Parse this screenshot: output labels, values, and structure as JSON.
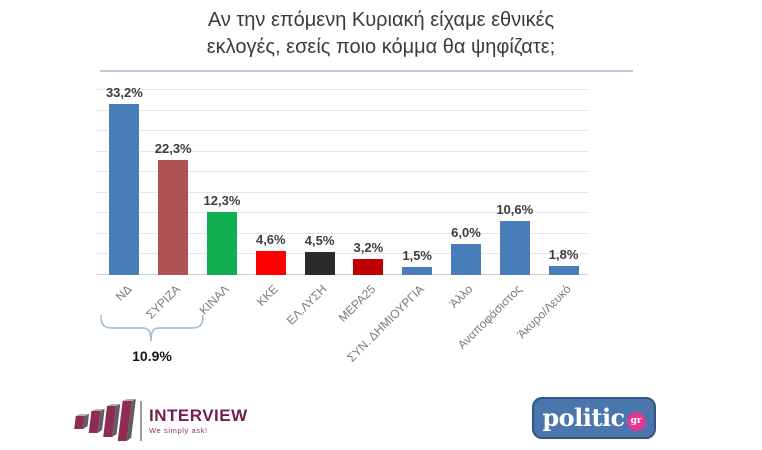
{
  "title": {
    "line1": "Αν την επόμενη Κυριακή είχαμε εθνικές",
    "line2": "εκλογές, εσείς ποιο κόμμα θα ψηφίζατε;"
  },
  "chart_data": {
    "type": "bar",
    "title": "Αν την επόμενη Κυριακή είχαμε εθνικές εκλογές, εσείς ποιο κόμμα θα ψηφίζατε;",
    "categories": [
      "ΝΔ",
      "ΣΥΡΙΖΑ",
      "ΚΙΝΑΛ",
      "ΚΚΕ",
      "ΕΛ.ΛΥΣΗ",
      "ΜΕΡΑ25",
      "ΣΥΝ. ΔΗΜΙΟΥΡΓΙΑ",
      "Άλλο",
      "Αναποφάσιστος",
      "Άκυρο/Λευκό"
    ],
    "values": [
      33.2,
      22.3,
      12.3,
      4.6,
      4.5,
      3.2,
      1.5,
      6.0,
      10.6,
      1.8
    ],
    "value_labels": [
      "33,2%",
      "22,3%",
      "12,3%",
      "4,6%",
      "4,5%",
      "3,2%",
      "1,5%",
      "6,0%",
      "10,6%",
      "1,8%"
    ],
    "bar_colors": [
      "#4a7eba",
      "#b05153",
      "#12af52",
      "#fe0000",
      "#2b2b2b",
      "#c00000",
      "#4a7eba",
      "#4a7eba",
      "#4a7eba",
      "#4a7eba"
    ],
    "xlabel": "",
    "ylabel": "",
    "ylim": [
      0,
      36
    ],
    "gridline_step_pct": 4,
    "grid": true,
    "legend": "none",
    "annotation": {
      "label": "10.9%",
      "from_category": "ΝΔ",
      "to_category": "ΣΥΡΙΖΑ"
    }
  },
  "footer": {
    "interview": {
      "name": "INTERVIEW",
      "tagline": "We simply ask!"
    },
    "politic": {
      "text": "politic",
      "badge": "gr"
    }
  },
  "colors": {
    "accent_blue": "#4a7eba",
    "grid": "#e4e6e8",
    "brace": "#9cb8d9",
    "title_text": "#3b3b3b",
    "interview_maroon": "#73204d",
    "politic_blue": "#4a76ad",
    "politic_pink": "#e3388f"
  }
}
